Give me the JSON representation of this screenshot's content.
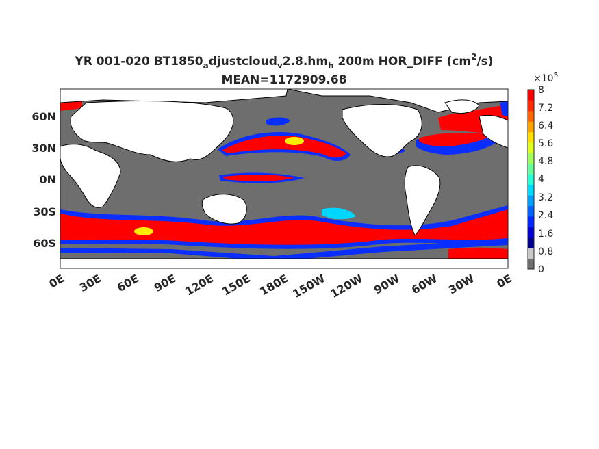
{
  "title": {
    "line1_prefix": "YR 001-020 BT1850",
    "sub1": "a",
    "mid1": "djustcloud",
    "sub2": "v",
    "mid2": "2.8.hm",
    "sub3": "h",
    "mid3": " 200m HOR_DIFF (cm",
    "sup1": "2",
    "suffix": "/s)",
    "line2": "MEAN=1172909.68"
  },
  "map": {
    "lat_ticks": [
      "60N",
      "30N",
      "0N",
      "30S",
      "60S"
    ],
    "lon_ticks": [
      "0E",
      "30E",
      "60E",
      "90E",
      "120E",
      "150E",
      "180E",
      "150W",
      "120W",
      "90W",
      "60W",
      "30W",
      "0E"
    ],
    "colors": {
      "land": "#ffffff",
      "low_ocean": "#6e6e6e",
      "high": "#ff0000",
      "mid": "#0a2eff",
      "cyan": "#00d5ff",
      "yellow": "#ffee00"
    }
  },
  "colorbar": {
    "exponent_base": "×10",
    "exponent": "5",
    "tick_labels": [
      "8",
      "7.2",
      "6.4",
      "5.6",
      "4.8",
      "4",
      "3.2",
      "2.4",
      "1.6",
      "0.8",
      "0"
    ],
    "colors": [
      "#6e6e6e",
      "#c8c8c8",
      "#00008f",
      "#0000d5",
      "#0027ff",
      "#0063ff",
      "#009fff",
      "#00dbff",
      "#29ffd6",
      "#66ff99",
      "#a3ff5c",
      "#e0ff1f",
      "#ffe000",
      "#ffa300",
      "#ff6600",
      "#ff2900",
      "#ff0000"
    ]
  }
}
